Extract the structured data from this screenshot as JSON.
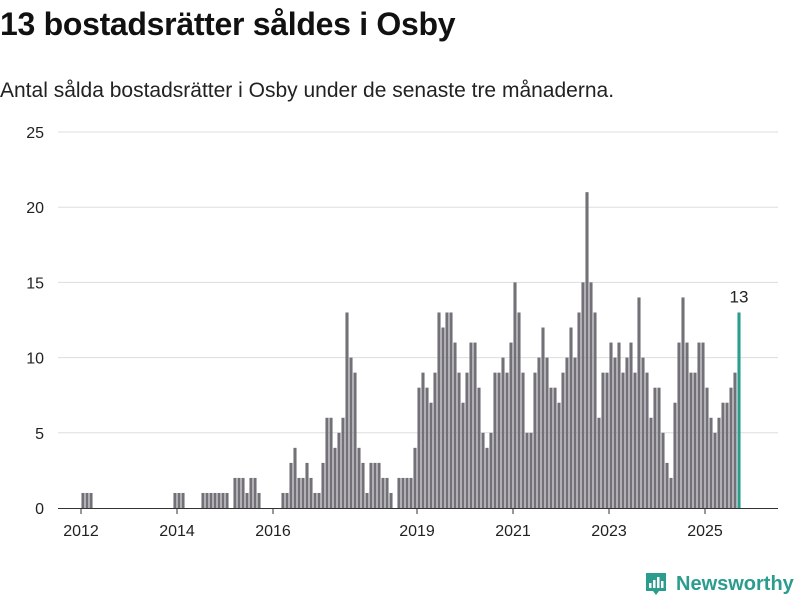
{
  "title": "13 bostadsrätter såldes i Osby",
  "subtitle": "Antal sålda bostadsrätter i Osby under de senaste tre månaderna.",
  "brand": {
    "name": "Newsworthy",
    "icon": "newsworthy-logo-icon",
    "color": "#2a9d8f"
  },
  "chart_data": {
    "type": "bar",
    "x_start": "2011-10",
    "x_end": "2025-08",
    "x_ticks": [
      "2012",
      "2014",
      "2016",
      "2019",
      "2021",
      "2023",
      "2025"
    ],
    "y_ticks": [
      0,
      5,
      10,
      15,
      20,
      25
    ],
    "ylim": [
      0,
      25
    ],
    "grid": true,
    "bar_color": "#727177",
    "highlight_color": "#2a9d8f",
    "highlight_label": "13",
    "values": [
      0,
      0,
      0,
      0,
      0,
      1,
      1,
      1,
      0,
      0,
      0,
      0,
      0,
      0,
      0,
      0,
      0,
      0,
      0,
      0,
      0,
      0,
      0,
      0,
      0,
      0,
      0,
      0,
      1,
      1,
      1,
      0,
      0,
      0,
      0,
      1,
      1,
      1,
      1,
      1,
      1,
      1,
      0,
      2,
      2,
      2,
      1,
      2,
      2,
      1,
      0,
      0,
      0,
      0,
      0,
      1,
      1,
      3,
      4,
      2,
      2,
      3,
      2,
      1,
      1,
      3,
      6,
      6,
      4,
      5,
      6,
      13,
      10,
      9,
      4,
      3,
      1,
      3,
      3,
      3,
      2,
      2,
      1,
      0,
      2,
      2,
      2,
      2,
      4,
      8,
      9,
      8,
      7,
      9,
      13,
      12,
      13,
      13,
      11,
      9,
      7,
      9,
      11,
      11,
      8,
      5,
      4,
      5,
      9,
      9,
      10,
      9,
      11,
      15,
      13,
      9,
      5,
      5,
      9,
      10,
      12,
      10,
      8,
      8,
      7,
      9,
      10,
      12,
      10,
      13,
      15,
      21,
      15,
      13,
      6,
      9,
      9,
      11,
      10,
      11,
      9,
      10,
      11,
      9,
      14,
      10,
      9,
      6,
      8,
      8,
      5,
      3,
      2,
      7,
      11,
      14,
      11,
      9,
      9,
      11,
      11,
      8,
      6,
      5,
      6,
      7,
      7,
      8,
      9,
      13
    ]
  }
}
